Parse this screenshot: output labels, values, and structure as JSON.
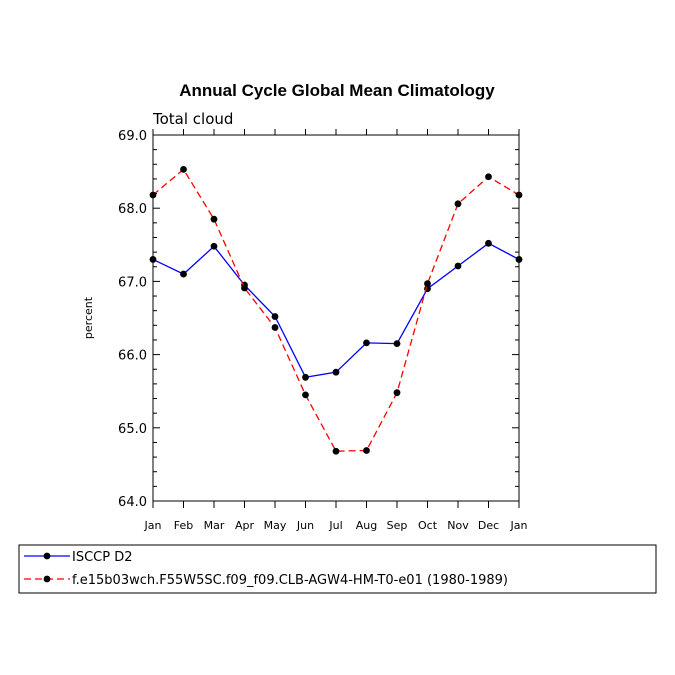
{
  "chart_data": {
    "type": "line",
    "title": "Annual Cycle Global Mean Climatology",
    "subtitle": "Total cloud",
    "ylabel": "percent",
    "xlabel": "",
    "categories": [
      "Jan",
      "Feb",
      "Mar",
      "Apr",
      "May",
      "Jun",
      "Jul",
      "Aug",
      "Sep",
      "Oct",
      "Nov",
      "Dec",
      "Jan"
    ],
    "ylim": [
      64.0,
      69.0
    ],
    "yticks": [
      64.0,
      65.0,
      66.0,
      67.0,
      68.0,
      69.0
    ],
    "ytick_labels": [
      "64.0",
      "65.0",
      "66.0",
      "67.0",
      "68.0",
      "69.0"
    ],
    "series": [
      {
        "name": "ISCCP D2",
        "color": "#0000ff",
        "dash": "solid",
        "values": [
          67.3,
          67.1,
          67.48,
          66.95,
          66.52,
          65.69,
          65.76,
          66.16,
          66.15,
          66.9,
          67.21,
          67.52,
          67.3
        ]
      },
      {
        "name": "f.e15b03wch.F55W5SC.f09_f09.CLB-AGW4-HM-T0-e01 (1980-1989)",
        "color": "#ff0000",
        "dash": "dashed",
        "values": [
          68.18,
          68.53,
          67.85,
          66.91,
          66.37,
          65.45,
          64.68,
          64.69,
          65.48,
          66.97,
          68.06,
          68.43,
          68.18
        ]
      }
    ],
    "grid": false,
    "legend_position": "bottom"
  }
}
